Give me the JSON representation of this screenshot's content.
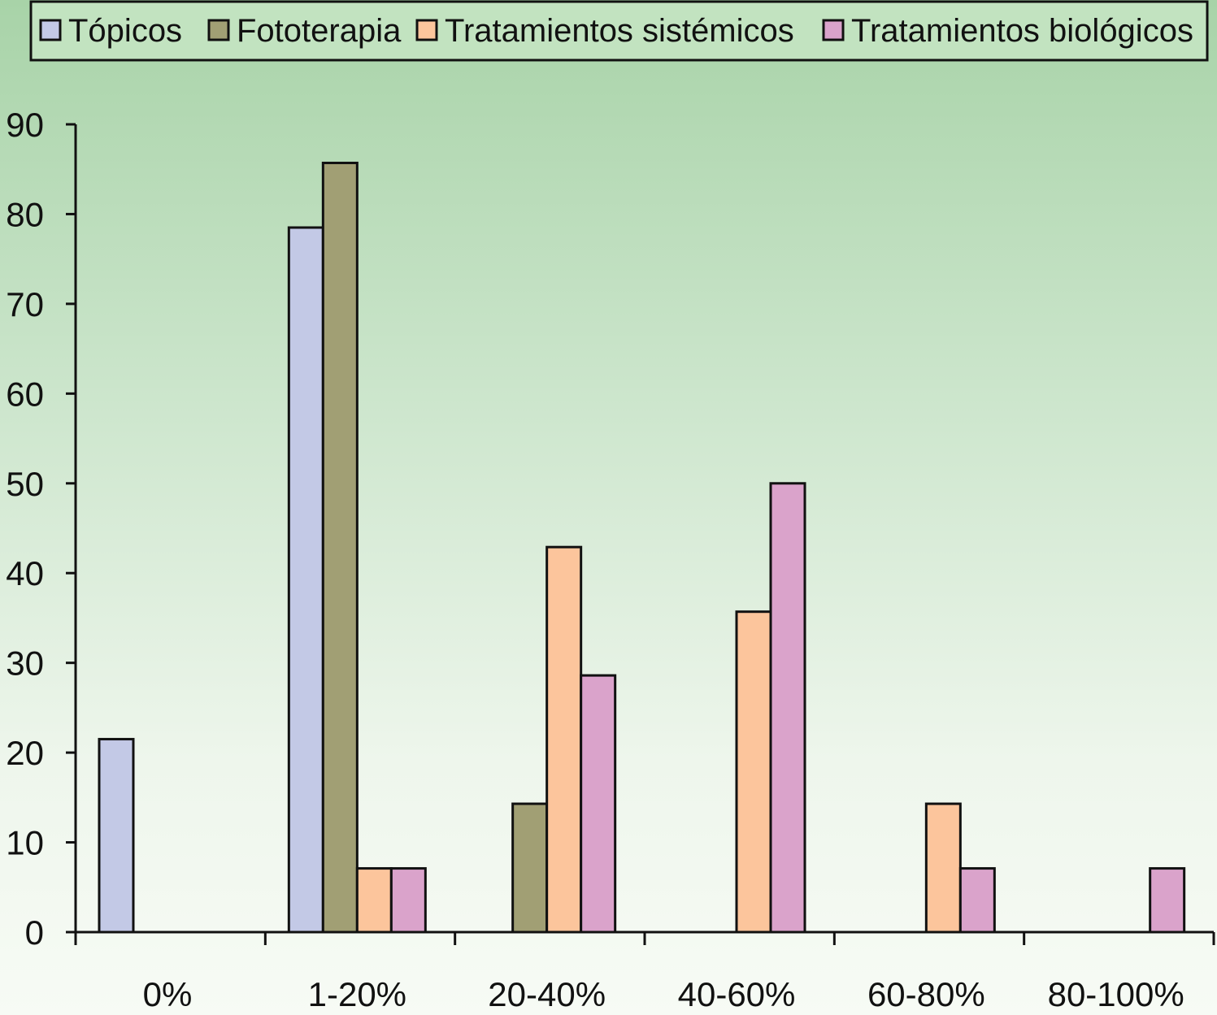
{
  "chart_data": {
    "type": "bar",
    "categories": [
      "0%",
      "1-20%",
      "20-40%",
      "40-60%",
      "60-80%",
      "80-100%"
    ],
    "series": [
      {
        "name": "Tópicos",
        "color": "#c3c9e6",
        "values": [
          21.5,
          78.5,
          0,
          0,
          0,
          0
        ]
      },
      {
        "name": "Fototerapia",
        "color": "#a19f74",
        "values": [
          0,
          85.7,
          14.3,
          0,
          0,
          0
        ]
      },
      {
        "name": "Tratamientos sistémicos",
        "color": "#fcc59c",
        "values": [
          0,
          7.1,
          42.9,
          35.7,
          14.3,
          0
        ]
      },
      {
        "name": "Tratamientos biológicos",
        "color": "#daa3cb",
        "values": [
          0,
          7.1,
          28.6,
          50,
          7.1,
          7.1
        ]
      }
    ],
    "yticks": [
      "0",
      "10",
      "20",
      "30",
      "40",
      "50",
      "60",
      "70",
      "80",
      "90"
    ],
    "ylim": [
      0,
      90
    ],
    "legend_position": "top",
    "grid": false
  }
}
